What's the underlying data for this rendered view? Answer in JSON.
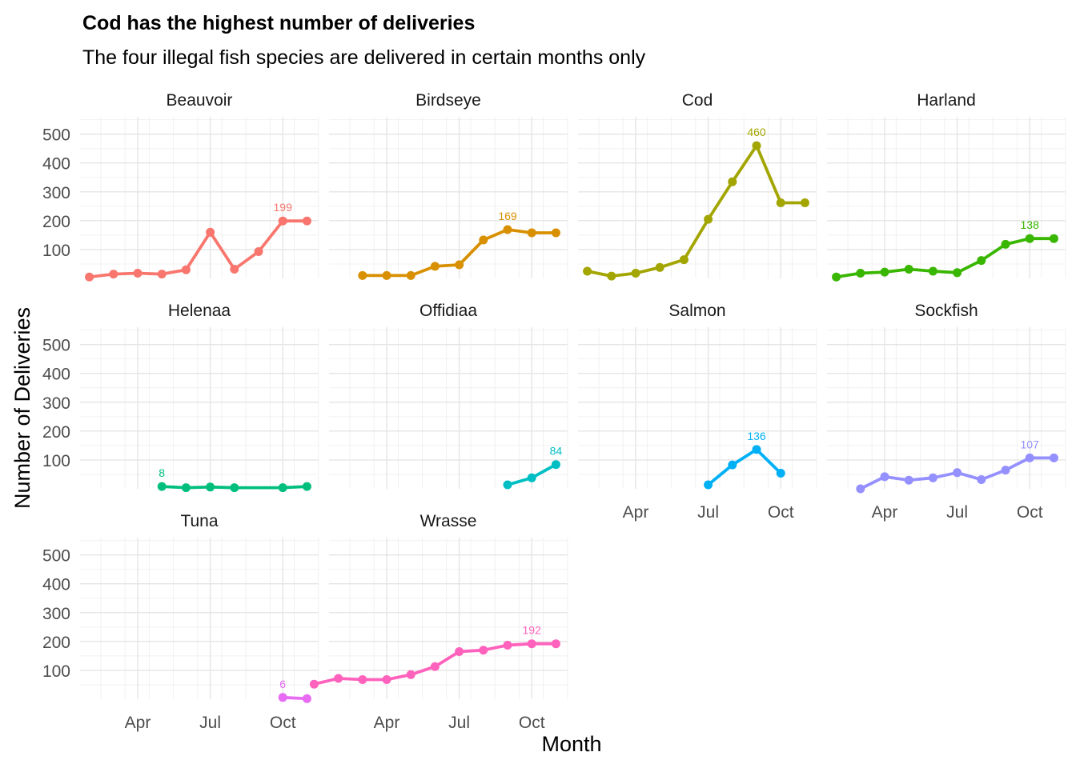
{
  "chart_data": {
    "type": "line",
    "title": "Cod has the highest number of deliveries",
    "subtitle": "The four illegal fish species are delivered in certain months only",
    "xlabel": "Month",
    "ylabel": "Number of Deliveries",
    "ylim": [
      0,
      560
    ],
    "y_ticks": [
      "100",
      "200",
      "300",
      "400",
      "500"
    ],
    "x_ticks": [
      "Apr",
      "Jul",
      "Oct"
    ],
    "grid": true,
    "legend": "none",
    "series": [
      {
        "name": "Beauvoir",
        "color": "#F8766D",
        "x": [
          "2023-02-01",
          "2023-03-01",
          "2023-04-01",
          "2023-05-01",
          "2023-06-01",
          "2023-07-01",
          "2023-08-01",
          "2023-09-01",
          "2023-10-01",
          "2023-11-01"
        ],
        "values": [
          5,
          15,
          18,
          15,
          30,
          160,
          32,
          93,
          199,
          199
        ],
        "label": "199"
      },
      {
        "name": "Birdseye",
        "color": "#D89000",
        "x": [
          "2023-03-01",
          "2023-04-01",
          "2023-05-01",
          "2023-06-01",
          "2023-07-01",
          "2023-08-01",
          "2023-09-01",
          "2023-10-01",
          "2023-11-01"
        ],
        "values": [
          10,
          10,
          10,
          42,
          47,
          133,
          169,
          158,
          158
        ],
        "label": "169"
      },
      {
        "name": "Cod",
        "color": "#A3A500",
        "x": [
          "2023-02-01",
          "2023-03-01",
          "2023-04-01",
          "2023-05-01",
          "2023-06-01",
          "2023-07-01",
          "2023-08-01",
          "2023-09-01",
          "2023-10-01",
          "2023-11-01"
        ],
        "values": [
          25,
          8,
          18,
          38,
          65,
          205,
          335,
          460,
          262,
          262
        ],
        "label": "460"
      },
      {
        "name": "Harland",
        "color": "#39B600",
        "x": [
          "2023-02-01",
          "2023-03-01",
          "2023-04-01",
          "2023-05-01",
          "2023-06-01",
          "2023-07-01",
          "2023-08-01",
          "2023-09-01",
          "2023-10-01",
          "2023-11-01"
        ],
        "values": [
          5,
          18,
          22,
          32,
          25,
          20,
          62,
          118,
          138,
          138
        ],
        "label": "138"
      },
      {
        "name": "Helenaa",
        "color": "#00BF7D",
        "x": [
          "2023-05-01",
          "2023-06-01",
          "2023-07-01",
          "2023-08-01",
          "2023-10-01",
          "2023-11-01"
        ],
        "values": [
          8,
          4,
          6,
          4,
          4,
          8
        ],
        "label": "8"
      },
      {
        "name": "Offidiaa",
        "color": "#00BFC4",
        "x": [
          "2023-09-01",
          "2023-10-01",
          "2023-11-01"
        ],
        "values": [
          14,
          38,
          84
        ],
        "label": "84"
      },
      {
        "name": "Salmon",
        "color": "#00B0F6",
        "x": [
          "2023-07-01",
          "2023-08-01",
          "2023-09-01",
          "2023-10-01"
        ],
        "values": [
          14,
          83,
          136,
          54
        ],
        "label": "136"
      },
      {
        "name": "Sockfish",
        "color": "#9590FF",
        "x": [
          "2023-03-01",
          "2023-04-01",
          "2023-05-01",
          "2023-06-01",
          "2023-07-01",
          "2023-08-01",
          "2023-09-01",
          "2023-10-01",
          "2023-11-01"
        ],
        "values": [
          0,
          42,
          30,
          38,
          56,
          32,
          65,
          107,
          107
        ],
        "label": "107"
      },
      {
        "name": "Tuna",
        "color": "#E76BF3",
        "x": [
          "2023-10-01",
          "2023-11-01"
        ],
        "values": [
          6,
          2
        ],
        "label": "6"
      },
      {
        "name": "Wrasse",
        "color": "#FF62BC",
        "x": [
          "2023-01-01",
          "2023-02-01",
          "2023-03-01",
          "2023-04-01",
          "2023-05-01",
          "2023-06-01",
          "2023-07-01",
          "2023-08-01",
          "2023-09-01",
          "2023-10-01",
          "2023-11-01"
        ],
        "values": [
          52,
          72,
          68,
          68,
          85,
          113,
          165,
          170,
          187,
          192,
          192
        ],
        "label": "192"
      }
    ]
  }
}
